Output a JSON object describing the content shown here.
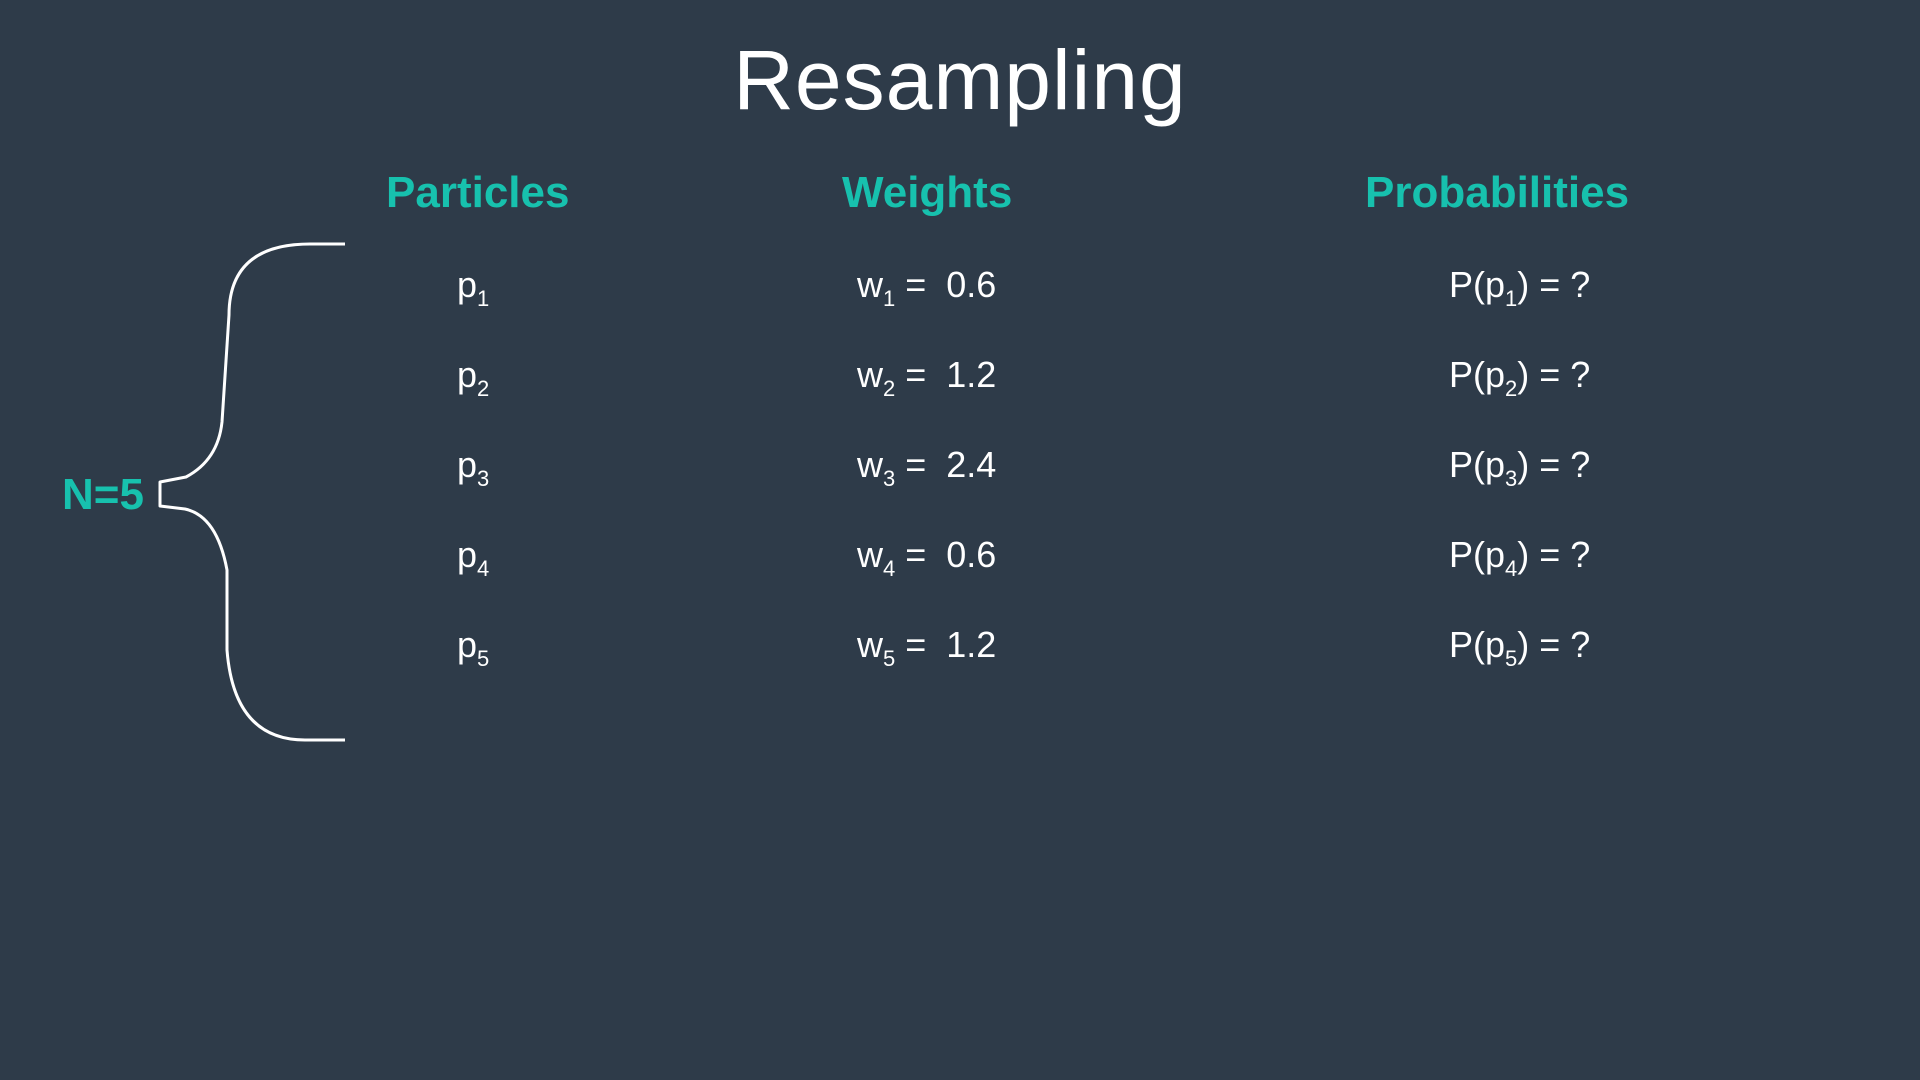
{
  "title": "Resampling",
  "headers": {
    "particles": "Particles",
    "weights": "Weights",
    "probabilities": "Probabilities"
  },
  "n_label": "N=5",
  "rows": [
    {
      "particle_base": "p",
      "index": "1",
      "weight_base": "w",
      "weight_eq": " =  ",
      "weight_value": "0.6",
      "prob_prefix": "P(p",
      "prob_suffix": ") = ?"
    },
    {
      "particle_base": "p",
      "index": "2",
      "weight_base": "w",
      "weight_eq": " =  ",
      "weight_value": "1.2",
      "prob_prefix": "P(p",
      "prob_suffix": ") = ?"
    },
    {
      "particle_base": "p",
      "index": "3",
      "weight_base": "w",
      "weight_eq": " =  ",
      "weight_value": "2.4",
      "prob_prefix": "P(p",
      "prob_suffix": ") = ?"
    },
    {
      "particle_base": "p",
      "index": "4",
      "weight_base": "w",
      "weight_eq": " =  ",
      "weight_value": "0.6",
      "prob_prefix": "P(p",
      "prob_suffix": ") = ?"
    },
    {
      "particle_base": "p",
      "index": "5",
      "weight_base": "w",
      "weight_eq": " =  ",
      "weight_value": "1.2",
      "prob_prefix": "P(p",
      "prob_suffix": ") = ?"
    }
  ],
  "colors": {
    "background": "#2e3b49",
    "accent": "#17c1ae",
    "text": "#ffffff"
  }
}
